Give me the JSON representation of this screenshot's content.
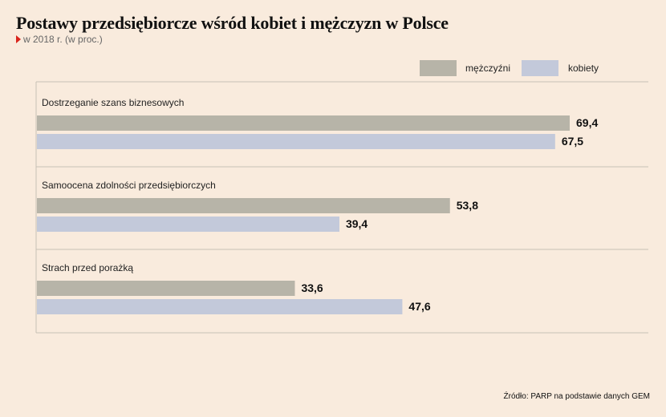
{
  "title": "Postawy przedsiębiorcze wśród kobiet i mężczyzn w Polsce",
  "subtitle": "w 2018 r. (w proc.)",
  "source": "Źródło: PARP na podstawie danych GEM",
  "colors": {
    "background": "#f9ebdd",
    "men": "#b7b4a8",
    "women": "#c3c9da",
    "marker": "#d9241c",
    "gridline": "#c8c0b5"
  },
  "chart_data": {
    "type": "bar",
    "orientation": "horizontal",
    "categories": [
      "Dostrzeganie szans biznesowych",
      "Samoocena zdolności przedsiębiorczych",
      "Strach przed porażką"
    ],
    "series": [
      {
        "name": "mężczyźni",
        "values": [
          69.4,
          53.8,
          33.6
        ]
      },
      {
        "name": "kobiety",
        "values": [
          67.5,
          39.4,
          47.6
        ]
      }
    ],
    "value_labels": [
      [
        "69,4",
        "53,8",
        "33,6"
      ],
      [
        "67,5",
        "39,4",
        "47,6"
      ]
    ],
    "xlim": [
      0,
      70
    ],
    "legend": "top-right",
    "grid": false
  }
}
